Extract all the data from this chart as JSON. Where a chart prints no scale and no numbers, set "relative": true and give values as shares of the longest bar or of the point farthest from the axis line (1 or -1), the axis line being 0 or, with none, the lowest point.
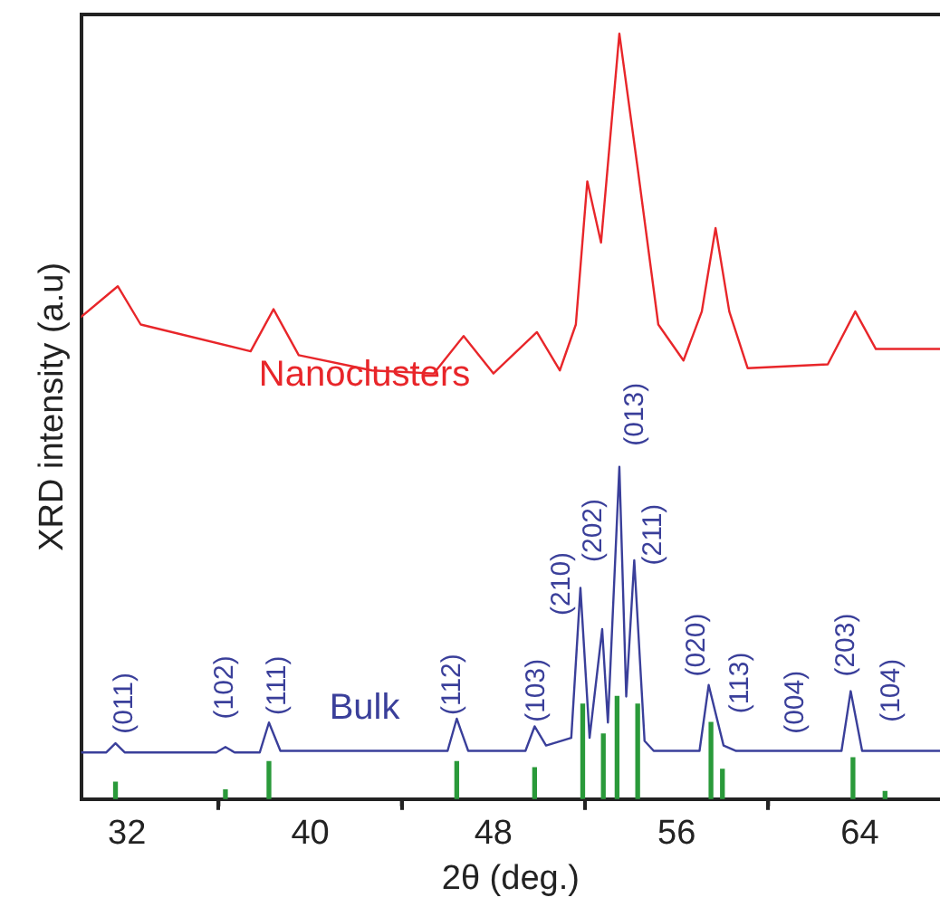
{
  "chart_data": {
    "type": "line",
    "xlabel": "2θ (deg.)",
    "ylabel": "XRD intensity (a.u)",
    "relative": true,
    "grid": false,
    "legend": false,
    "marker": "none",
    "line_style": "solid",
    "xlim": [
      30,
      67.5
    ],
    "xticks": [
      32,
      40,
      48,
      56,
      64
    ],
    "series": [
      {
        "name": "Nanoclusters",
        "color": "#e8262a",
        "x": [
          30,
          31.6,
          32.6,
          37.4,
          38.4,
          39.5,
          42.7,
          45.4,
          46.7,
          48,
          49.9,
          50.9,
          51.6,
          52.1,
          52.7,
          53.5,
          54.3,
          55.2,
          56.3,
          57.1,
          57.7,
          58.3,
          59.1,
          62.6,
          63.8,
          64.7,
          67.5
        ],
        "values": [
          0.63,
          0.67,
          0.62,
          0.585,
          0.64,
          0.58,
          0.56,
          0.556,
          0.605,
          0.556,
          0.61,
          0.56,
          0.62,
          0.807,
          0.727,
          1,
          0.824,
          0.62,
          0.573,
          0.637,
          0.746,
          0.637,
          0.563,
          0.568,
          0.637,
          0.588,
          0.588
        ]
      },
      {
        "name": "Bulk",
        "color": "#3a3f9a",
        "x": [
          30,
          31.1,
          31.5,
          31.9,
          35.9,
          36.3,
          36.7,
          37.8,
          38.2,
          38.7,
          46,
          46.4,
          46.9,
          49.4,
          49.8,
          50.3,
          51.4,
          51.8,
          52.2,
          52.75,
          53,
          53.5,
          53.8,
          54.15,
          54.6,
          55,
          57,
          57.4,
          58.05,
          58.6,
          63.2,
          63.6,
          64.1,
          67.5
        ],
        "values": [
          0.061,
          0.061,
          0.073,
          0.061,
          0.061,
          0.068,
          0.061,
          0.061,
          0.1,
          0.063,
          0.063,
          0.105,
          0.063,
          0.063,
          0.095,
          0.07,
          0.08,
          0.276,
          0.08,
          0.222,
          0.1,
          0.434,
          0.134,
          0.312,
          0.076,
          0.063,
          0.063,
          0.149,
          0.07,
          0.063,
          0.063,
          0.141,
          0.063,
          0.063
        ]
      },
      {
        "type": "bar",
        "color": "#2a9a3a",
        "x": [
          31.5,
          36.3,
          38.2,
          46.4,
          49.8,
          51.9,
          52.8,
          53.4,
          54.3,
          57.5,
          58,
          63.7,
          65.1
        ],
        "values": [
          0.022,
          0.012,
          0.049,
          0.049,
          0.041,
          0.124,
          0.085,
          0.134,
          0.124,
          0.1,
          0.039,
          0.054,
          0.01
        ]
      }
    ],
    "annotations": [
      "(011)",
      "(102)",
      "(111)",
      "(112)",
      "(103)",
      "(210)",
      "(202)",
      "(013)",
      "(211)",
      "(020)",
      "(113)",
      "(004)",
      "(203)",
      "(104)"
    ]
  }
}
